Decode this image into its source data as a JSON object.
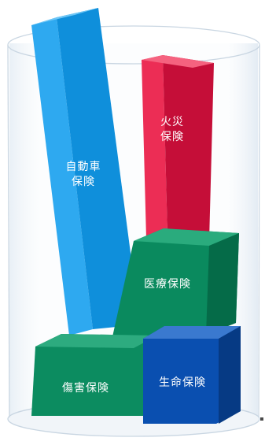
{
  "blocks": {
    "auto": {
      "line1": "自動車",
      "line2": "保険",
      "color": "#0f9ae8"
    },
    "fire": {
      "line1": "火災",
      "line2": "保険",
      "color": "#e0123f"
    },
    "medical": {
      "label": "医療保険",
      "color": "#0a8a5e"
    },
    "injury": {
      "label": "傷害保険",
      "color": "#0a8a5e"
    },
    "life": {
      "label": "生命保険",
      "color": "#0a4fb0"
    }
  }
}
